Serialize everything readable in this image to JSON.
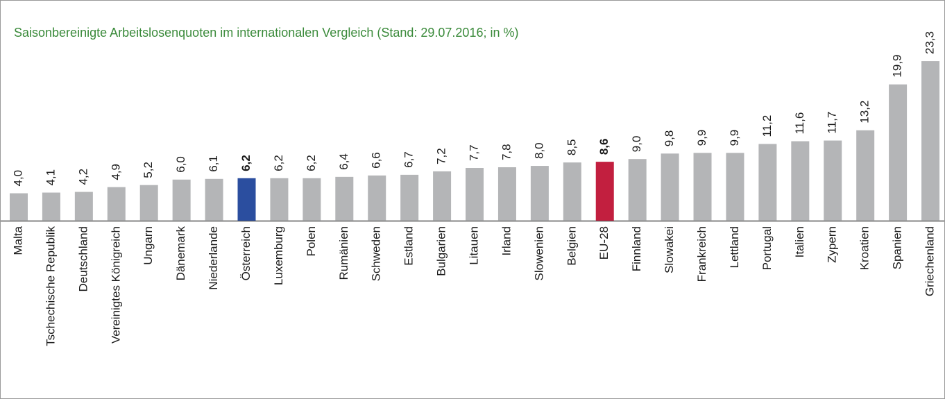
{
  "chart_data": {
    "type": "bar",
    "title": "Saisonbereinigte Arbeitslosenquoten im internationalen Vergleich (Stand: 29.07.2016; in %)",
    "categories": [
      "Malta",
      "Tschechische Republik",
      "Deutschland",
      "Vereinigtes Königreich",
      "Ungarn",
      "Dänemark",
      "Niederlande",
      "Österreich",
      "Luxemburg",
      "Polen",
      "Rumänien",
      "Schweden",
      "Estland",
      "Bulgarien",
      "Litauen",
      "Irland",
      "Slowenien",
      "Belgien",
      "EU-28",
      "Finnland",
      "Slowakei",
      "Frankreich",
      "Lettland",
      "Portugal",
      "Italien",
      "Zypern",
      "Kroatien",
      "Spanien",
      "Griechenland"
    ],
    "values": [
      4.0,
      4.1,
      4.2,
      4.9,
      5.2,
      6.0,
      6.1,
      6.2,
      6.2,
      6.2,
      6.4,
      6.6,
      6.7,
      7.2,
      7.7,
      7.8,
      8.0,
      8.5,
      8.6,
      9.0,
      9.8,
      9.9,
      9.9,
      11.2,
      11.6,
      11.7,
      13.2,
      19.9,
      23.3
    ],
    "value_labels": [
      "4,0",
      "4,1",
      "4,2",
      "4,9",
      "5,2",
      "6,0",
      "6,1",
      "6,2",
      "6,2",
      "6,2",
      "6,4",
      "6,6",
      "6,7",
      "7,2",
      "7,7",
      "7,8",
      "8,0",
      "8,5",
      "8,6",
      "9,0",
      "9,8",
      "9,9",
      "9,9",
      "11,2",
      "11,6",
      "11,7",
      "13,2",
      "19,9",
      "23,3"
    ],
    "color": "#b4b5b7",
    "colors": [
      "#b4b5b7",
      "#b4b5b7",
      "#b4b5b7",
      "#b4b5b7",
      "#b4b5b7",
      "#b4b5b7",
      "#b4b5b7",
      "#2b4e9f",
      "#b4b5b7",
      "#b4b5b7",
      "#b4b5b7",
      "#b4b5b7",
      "#b4b5b7",
      "#b4b5b7",
      "#b4b5b7",
      "#b4b5b7",
      "#b4b5b7",
      "#b4b5b7",
      "#c21f3f",
      "#b4b5b7",
      "#b4b5b7",
      "#b4b5b7",
      "#b4b5b7",
      "#b4b5b7",
      "#b4b5b7",
      "#b4b5b7",
      "#b4b5b7",
      "#b4b5b7",
      "#b4b5b7"
    ],
    "ylim": [
      0,
      25
    ]
  }
}
